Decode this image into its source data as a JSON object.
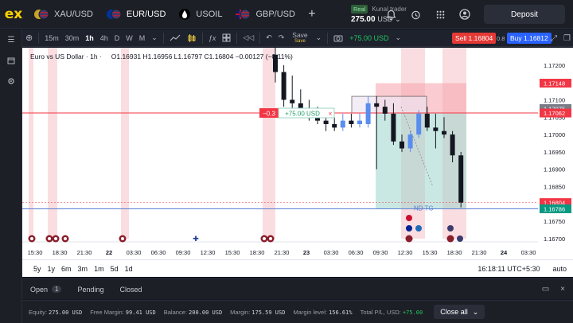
{
  "topbar": {
    "logo": "ex",
    "instruments": [
      {
        "label": "XAU/USD",
        "icon": "gold-usd-flag-icon"
      },
      {
        "label": "EUR/USD",
        "icon": "eur-usd-flag-icon",
        "active": true
      },
      {
        "label": "USOIL",
        "icon": "oil-drop-icon"
      },
      {
        "label": "GBP/USD",
        "icon": "gbp-usd-flag-icon"
      }
    ],
    "add_tab": "+",
    "account": {
      "type": "Real",
      "name": "Kunal trader",
      "balance": "275.00",
      "currency": "USD"
    },
    "deposit": "Deposit"
  },
  "toolbar": {
    "timeframes": [
      "15m",
      "30m",
      "1h",
      "4h",
      "D",
      "W",
      "M"
    ],
    "active_timeframe": "1h",
    "save": "Save",
    "save_sub": "Save",
    "pnl": "+75.00 USD",
    "sell": "Sell 1.16804",
    "spread": "0.8",
    "buy": "Buy 1.16812"
  },
  "chart": {
    "symbol_title": "Euro vs US Dollar · 1h ·",
    "ohlc": "O1.16931 H1.16956 L1.16797 C1.16804 −0.00127 (−0.11%)",
    "price_levels": [
      "1.17200",
      "1.17150",
      "1.17100",
      "1.17050",
      "1.17000",
      "1.16950",
      "1.16900",
      "1.16850",
      "1.16800",
      "1.16750",
      "1.16700"
    ],
    "price_tags": [
      {
        "label": "1.17148",
        "color": "#f23645"
      },
      {
        "label": "1.17075",
        "color": "#787b86"
      },
      {
        "label": "1.17062",
        "color": "#f23645"
      },
      {
        "label": "1.16804",
        "color": "#f23645"
      },
      {
        "label": "1.16786",
        "color": "#089981"
      }
    ],
    "time_labels": [
      "15:30",
      "18:30",
      "21:30",
      "22",
      "03:30",
      "06:30",
      "09:30",
      "12:30",
      "15:30",
      "18:30",
      "21:30",
      "23",
      "03:30",
      "06:30",
      "09:30",
      "12:30",
      "15:30",
      "18:30",
      "21:30",
      "24",
      "03:30"
    ],
    "position_label": "+75.00 USD",
    "position_qty": "−0.3",
    "position_close": "×",
    "tp_label": "ND TG"
  },
  "chart_data": {
    "type": "candlestick",
    "ylim": [
      1.167,
      1.1725
    ],
    "candles": [
      {
        "o": 1.1723,
        "h": 1.1725,
        "l": 1.1715,
        "c": 1.1718
      },
      {
        "o": 1.1718,
        "h": 1.172,
        "l": 1.1708,
        "c": 1.171
      },
      {
        "o": 1.171,
        "h": 1.1717,
        "l": 1.1706,
        "c": 1.1709
      },
      {
        "o": 1.1709,
        "h": 1.1713,
        "l": 1.1705,
        "c": 1.1706
      },
      {
        "o": 1.1706,
        "h": 1.171,
        "l": 1.1704,
        "c": 1.1705
      },
      {
        "o": 1.1705,
        "h": 1.1708,
        "l": 1.1703,
        "c": 1.1704
      },
      {
        "o": 1.1704,
        "h": 1.1706,
        "l": 1.1701,
        "c": 1.1703
      },
      {
        "o": 1.1703,
        "h": 1.1705,
        "l": 1.1701,
        "c": 1.1702
      },
      {
        "o": 1.1702,
        "h": 1.1706,
        "l": 1.1701,
        "c": 1.1704
      },
      {
        "o": 1.1704,
        "h": 1.1706,
        "l": 1.1702,
        "c": 1.1703
      },
      {
        "o": 1.1703,
        "h": 1.1706,
        "l": 1.1702,
        "c": 1.1704
      },
      {
        "o": 1.1703,
        "h": 1.1711,
        "l": 1.1702,
        "c": 1.1709
      },
      {
        "o": 1.1709,
        "h": 1.1711,
        "l": 1.169,
        "c": 1.1708
      },
      {
        "o": 1.1708,
        "h": 1.171,
        "l": 1.1704,
        "c": 1.1706
      },
      {
        "o": 1.1706,
        "h": 1.1709,
        "l": 1.1697,
        "c": 1.1698
      },
      {
        "o": 1.1698,
        "h": 1.17,
        "l": 1.1695,
        "c": 1.1696
      },
      {
        "o": 1.1696,
        "h": 1.1701,
        "l": 1.1695,
        "c": 1.17
      },
      {
        "o": 1.17,
        "h": 1.1707,
        "l": 1.1699,
        "c": 1.1706
      },
      {
        "o": 1.1706,
        "h": 1.1708,
        "l": 1.1701,
        "c": 1.1702
      },
      {
        "o": 1.1702,
        "h": 1.1706,
        "l": 1.1696,
        "c": 1.1701
      },
      {
        "o": 1.1701,
        "h": 1.1705,
        "l": 1.1699,
        "c": 1.17
      },
      {
        "o": 1.17,
        "h": 1.1701,
        "l": 1.1692,
        "c": 1.1694
      },
      {
        "o": 1.1694,
        "h": 1.1695,
        "l": 1.1679,
        "c": 1.16804
      }
    ]
  },
  "rangebar": {
    "ranges": [
      "5y",
      "1y",
      "6m",
      "3m",
      "1m",
      "5d",
      "1d"
    ],
    "clock": "16:18:11 UTC+5:30",
    "scale": "auto"
  },
  "bottom_tabs": {
    "open": "Open",
    "open_count": "1",
    "pending": "Pending",
    "closed": "Closed"
  },
  "status": {
    "equity_label": "Equity:",
    "equity": "275.00 USD",
    "free_margin_label": "Free Margin:",
    "free_margin": "99.41 USD",
    "balance_label": "Balance:",
    "balance": "200.00 USD",
    "margin_label": "Margin:",
    "margin": "175.59 USD",
    "margin_level_label": "Margin level:",
    "margin_level": "156.61%",
    "pl_label": "Total P/L, USD:",
    "pl": "+75.00",
    "close_all": "Close all"
  }
}
